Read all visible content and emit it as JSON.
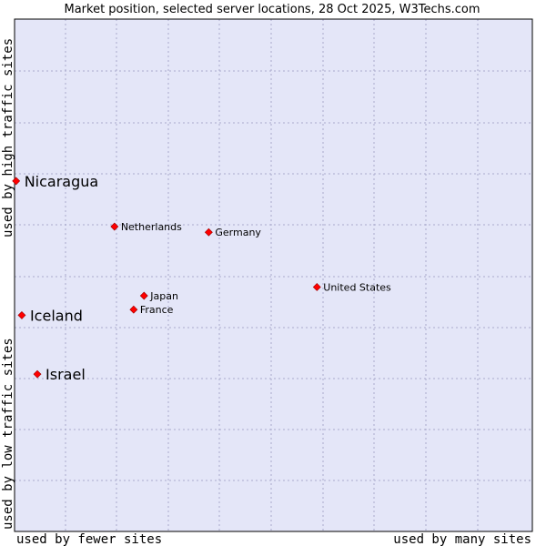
{
  "chart_data": {
    "type": "scatter",
    "title": "Market position, selected server locations, 28 Oct 2025, W3Techs.com",
    "xlabel_left": "used by fewer sites",
    "xlabel_right": "used by many sites",
    "ylabel_bottom": "used by low traffic sites",
    "ylabel_top": "used by high traffic sites",
    "xlim": [
      0,
      100
    ],
    "ylim": [
      0,
      100
    ],
    "grid": true,
    "colors": {
      "plot_bg": "#e4e6f8",
      "grid": "#aaaacc",
      "marker": "#ff0000",
      "marker_edge": "#990000"
    },
    "points": [
      {
        "label": "Nicaragua",
        "x": 0.3,
        "y": 68.4,
        "emphasis": true
      },
      {
        "label": "Netherlands",
        "x": 19.3,
        "y": 59.5,
        "emphasis": false
      },
      {
        "label": "Germany",
        "x": 37.5,
        "y": 58.4,
        "emphasis": false
      },
      {
        "label": "United States",
        "x": 58.4,
        "y": 47.7,
        "emphasis": false
      },
      {
        "label": "Japan",
        "x": 25.0,
        "y": 46.0,
        "emphasis": false
      },
      {
        "label": "France",
        "x": 23.0,
        "y": 43.3,
        "emphasis": false
      },
      {
        "label": "Iceland",
        "x": 1.4,
        "y": 42.2,
        "emphasis": true
      },
      {
        "label": "Israel",
        "x": 4.4,
        "y": 30.7,
        "emphasis": true
      }
    ]
  }
}
